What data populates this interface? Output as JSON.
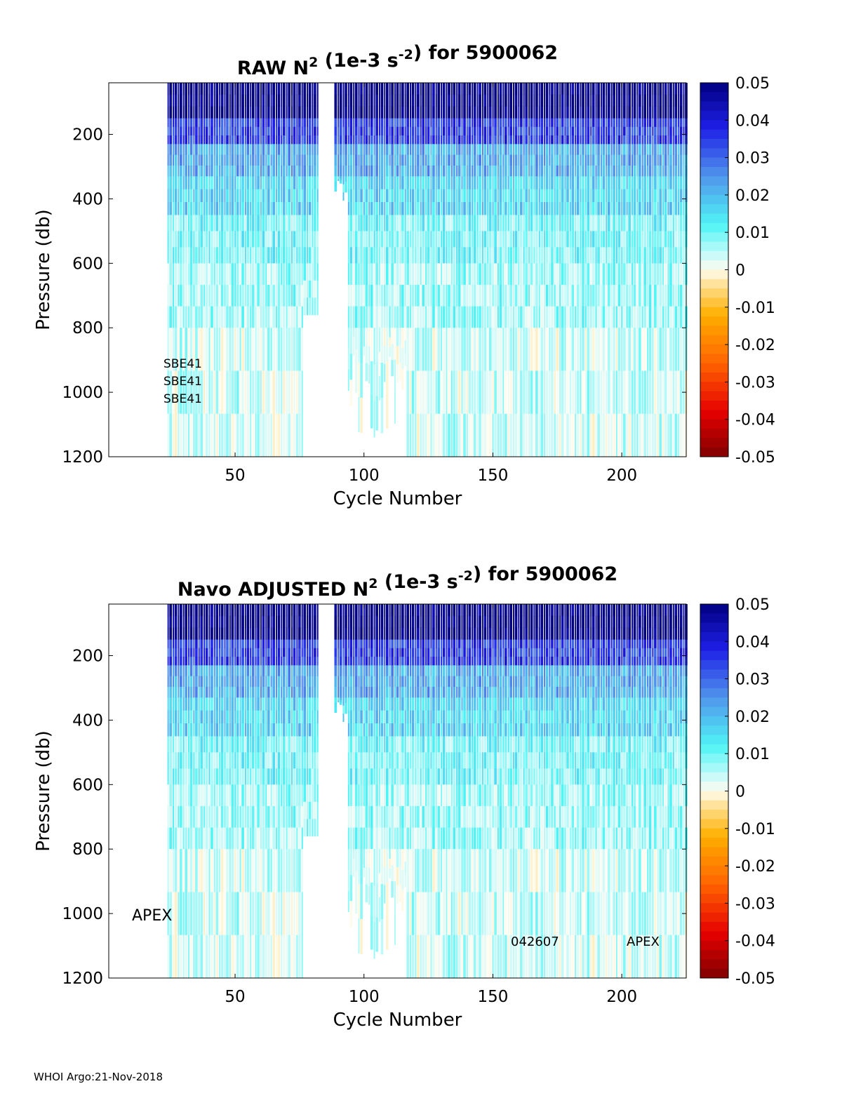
{
  "footer": "WHOI Argo:21-Nov-2018",
  "panels": [
    {
      "title_main": "RAW N",
      "title_sup1": "2",
      "title_mid": " (1e-3 s",
      "title_sup2": "-2",
      "title_end": ") for 5900062",
      "annotations": [
        "SBE41",
        "SBE41",
        "SBE41"
      ]
    },
    {
      "title_main": "Navo ADJUSTED N",
      "title_sup1": "2",
      "title_mid": " (1e-3 s",
      "title_sup2": "-2",
      "title_end": ") for 5900062",
      "annotations": [
        "APEX",
        "042607",
        "APEX"
      ]
    }
  ],
  "chart_data": [
    {
      "type": "heatmap",
      "title": "RAW N2 (1e-3 s-2) for 5900062",
      "xlabel": "Cycle Number",
      "ylabel": "Pressure (db)",
      "xlim": [
        1,
        225
      ],
      "ylim": [
        40,
        1200
      ],
      "y_reversed": true,
      "xticks": [
        50,
        100,
        150,
        200
      ],
      "yticks": [
        200,
        400,
        600,
        800,
        1000,
        1200
      ],
      "cycle_ranges_with_data": [
        [
          24,
          82
        ],
        [
          89,
          225
        ]
      ],
      "colorbar": {
        "clim": [
          -0.05,
          0.05
        ],
        "ticks": [
          "0.05",
          "0.04",
          "0.03",
          "0.02",
          "0.01",
          "0",
          "-0.01",
          "-0.02",
          "-0.03",
          "-0.04",
          "-0.05"
        ]
      },
      "typical_profile": [
        {
          "pressure_top": 40,
          "pressure_bottom": 150,
          "value": 0.05
        },
        {
          "pressure_top": 150,
          "pressure_bottom": 230,
          "value": 0.035
        },
        {
          "pressure_top": 230,
          "pressure_bottom": 330,
          "value": 0.022
        },
        {
          "pressure_top": 330,
          "pressure_bottom": 450,
          "value": 0.016
        },
        {
          "pressure_top": 450,
          "pressure_bottom": 600,
          "value": 0.01
        },
        {
          "pressure_top": 600,
          "pressure_bottom": 800,
          "value": 0.007
        },
        {
          "pressure_top": 800,
          "pressure_bottom": 1200,
          "value": 0.004
        }
      ]
    },
    {
      "type": "heatmap",
      "title": "Navo ADJUSTED N2 (1e-3 s-2) for 5900062",
      "xlabel": "Cycle Number",
      "ylabel": "Pressure (db)",
      "xlim": [
        1,
        225
      ],
      "ylim": [
        40,
        1200
      ],
      "y_reversed": true,
      "xticks": [
        50,
        100,
        150,
        200
      ],
      "yticks": [
        200,
        400,
        600,
        800,
        1000,
        1200
      ],
      "cycle_ranges_with_data": [
        [
          24,
          82
        ],
        [
          89,
          225
        ]
      ],
      "colorbar": {
        "clim": [
          -0.05,
          0.05
        ],
        "ticks": [
          "0.05",
          "0.04",
          "0.03",
          "0.02",
          "0.01",
          "0",
          "-0.01",
          "-0.02",
          "-0.03",
          "-0.04",
          "-0.05"
        ]
      },
      "typical_profile": [
        {
          "pressure_top": 40,
          "pressure_bottom": 150,
          "value": 0.05
        },
        {
          "pressure_top": 150,
          "pressure_bottom": 230,
          "value": 0.035
        },
        {
          "pressure_top": 230,
          "pressure_bottom": 330,
          "value": 0.022
        },
        {
          "pressure_top": 330,
          "pressure_bottom": 450,
          "value": 0.016
        },
        {
          "pressure_top": 450,
          "pressure_bottom": 600,
          "value": 0.01
        },
        {
          "pressure_top": 600,
          "pressure_bottom": 800,
          "value": 0.007
        },
        {
          "pressure_top": 800,
          "pressure_bottom": 1200,
          "value": 0.004
        }
      ]
    }
  ]
}
